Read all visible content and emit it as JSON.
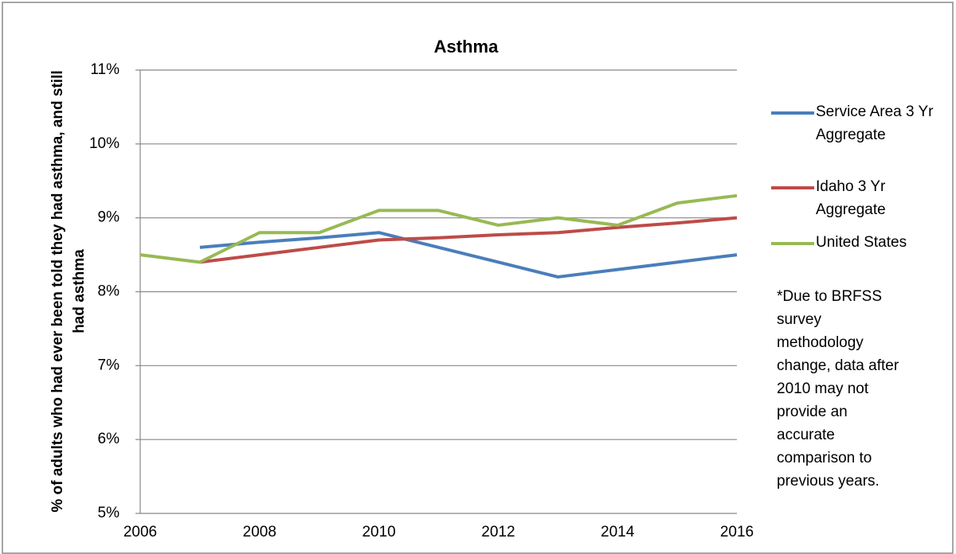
{
  "chart_data": {
    "type": "line",
    "title": "Asthma",
    "y_label": "% of adults who had ever been told they had asthma, and still had asthma",
    "annotation": "*Due to BRFSS survey methodology change, data after 2010 may not provide an accurate comparison to previous years.",
    "x": [
      2006,
      2007,
      2008,
      2009,
      2010,
      2011,
      2012,
      2013,
      2014,
      2015,
      2016
    ],
    "xlim": [
      2006,
      2016
    ],
    "xticks": [
      2006,
      2008,
      2010,
      2012,
      2014,
      2016
    ],
    "ylim": [
      5,
      11
    ],
    "yticks": [
      {
        "value": 5,
        "label": "5%"
      },
      {
        "value": 6,
        "label": "6%"
      },
      {
        "value": 7,
        "label": "7%"
      },
      {
        "value": 8,
        "label": "8%"
      },
      {
        "value": 9,
        "label": "9%"
      },
      {
        "value": 10,
        "label": "10%"
      },
      {
        "value": 11,
        "label": "11%"
      }
    ],
    "grid": true,
    "legend": "right",
    "series": [
      {
        "name": "Service Area 3 Yr Aggregate",
        "color": "#4a7ebb",
        "values": [
          null,
          8.6,
          8.67,
          8.73,
          8.8,
          8.6,
          8.4,
          8.2,
          8.3,
          8.4,
          8.5
        ]
      },
      {
        "name": "Idaho 3 Yr Aggregate",
        "color": "#be4b48",
        "values": [
          null,
          8.4,
          8.5,
          8.6,
          8.7,
          8.73,
          8.77,
          8.8,
          8.87,
          8.93,
          9.0
        ]
      },
      {
        "name": "United States",
        "color": "#98b954",
        "values": [
          8.5,
          8.4,
          8.8,
          8.8,
          9.1,
          9.1,
          8.9,
          9.0,
          8.9,
          9.2,
          9.3
        ]
      }
    ]
  }
}
